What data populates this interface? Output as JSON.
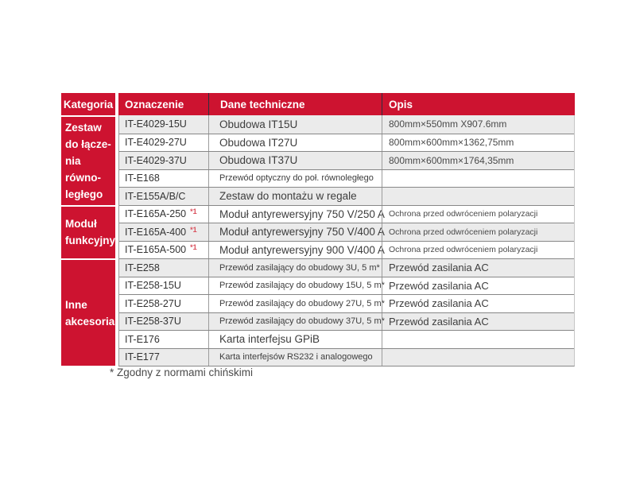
{
  "colors": {
    "brand_red": "#CD1330",
    "footnote_ref_red": "#D9505C",
    "row_shaded": "#EBEBEB",
    "row_plain": "#FFFFFF"
  },
  "footnote": "* Zgodny z normami chińskimi",
  "table": {
    "headers": {
      "kategoria": "Kategoria",
      "oznaczenie": "Oznaczenie",
      "dane_techniczne": "Dane techniczne",
      "opis": "Opis"
    },
    "categories": [
      {
        "label": "Zestaw\ndo łącze-\nnia równo-\nległego",
        "row_span": 5
      },
      {
        "label": "Moduł\nfunkcyjny",
        "row_span": 3
      },
      {
        "label": "Inne\nakcesoria",
        "row_span": 6
      }
    ],
    "rows": [
      {
        "code": "IT-E4029-15U",
        "sup": "",
        "tech": "Obudowa IT15U",
        "tech_size": "md",
        "opis": "800mm×550mm X907.6mm",
        "opis_size": "dim",
        "shaded": true
      },
      {
        "code": "IT-E4029-27U",
        "sup": "",
        "tech": "Obudowa IT27U",
        "tech_size": "md",
        "opis": "800mm×600mm×1362,75mm",
        "opis_size": "dim",
        "shaded": false
      },
      {
        "code": "IT-E4029-37U",
        "sup": "",
        "tech": "Obudowa IT37U",
        "tech_size": "md",
        "opis": "800mm×600mm×1764,35mm",
        "opis_size": "dim",
        "shaded": true
      },
      {
        "code": "IT-E168",
        "sup": "",
        "tech": "Przewód optyczny do poł. równoległego",
        "tech_size": "sm",
        "opis": "",
        "opis_size": "md",
        "shaded": false
      },
      {
        "code": "IT-E155A/B/C",
        "sup": "",
        "tech": "Zestaw do montażu w regale",
        "tech_size": "md",
        "opis": "",
        "opis_size": "md",
        "shaded": true
      },
      {
        "code": "IT-E165A-250",
        "sup": "*1",
        "tech": "Moduł antyrewersyjny 750 V/250 A",
        "tech_size": "md",
        "opis": "Ochrona przed odwróceniem polaryzacji",
        "opis_size": "sm",
        "shaded": false
      },
      {
        "code": "IT-E165A-400",
        "sup": "*1",
        "tech": "Moduł antyrewersyjny 750 V/400 A",
        "tech_size": "md",
        "opis": "Ochrona przed odwróceniem polaryzacji",
        "opis_size": "sm",
        "shaded": true
      },
      {
        "code": "IT-E165A-500",
        "sup": "*1",
        "tech": "Moduł antyrewersyjny 900 V/400 A",
        "tech_size": "md",
        "opis": "Ochrona przed odwróceniem polaryzacji",
        "opis_size": "sm",
        "shaded": false
      },
      {
        "code": "IT-E258",
        "sup": "",
        "tech": "Przewód zasilający do obudowy 3U, 5 m*",
        "tech_size": "sm",
        "opis": "Przewód zasilania AC",
        "opis_size": "md",
        "shaded": true
      },
      {
        "code": "IT-E258-15U",
        "sup": "",
        "tech": "Przewód zasilający do obudowy 15U, 5 m*",
        "tech_size": "sm",
        "opis": "Przewód zasilania AC",
        "opis_size": "md",
        "shaded": false
      },
      {
        "code": "IT-E258-27U",
        "sup": "",
        "tech": "Przewód zasilający do obudowy 27U, 5 m*",
        "tech_size": "sm",
        "opis": "Przewód zasilania AC",
        "opis_size": "md",
        "shaded": false
      },
      {
        "code": "IT-E258-37U",
        "sup": "",
        "tech": "Przewód zasilający do obudowy 37U, 5 m*",
        "tech_size": "sm",
        "opis": "Przewód zasilania AC",
        "opis_size": "md",
        "shaded": true
      },
      {
        "code": "IT-E176",
        "sup": "",
        "tech": "Karta interfejsu GPiB",
        "tech_size": "md",
        "opis": "",
        "opis_size": "md",
        "shaded": false
      },
      {
        "code": "IT-E177",
        "sup": "",
        "tech": "Karta interfejsów RS232 i analogowego",
        "tech_size": "sm",
        "opis": "",
        "opis_size": "md",
        "shaded": true
      }
    ]
  }
}
